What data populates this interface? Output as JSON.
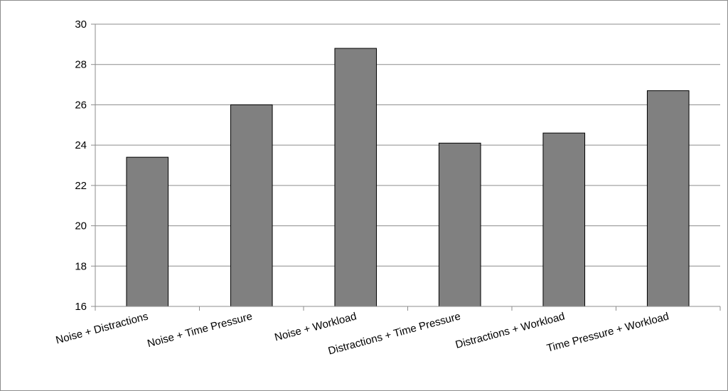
{
  "chart_data": {
    "type": "bar",
    "title": "",
    "xlabel": "",
    "ylabel": "",
    "categories": [
      "Noise + Distractions",
      "Noise + Time Pressure",
      "Noise + Workload",
      "Distractions + Time Pressure",
      "Distractions + Workload",
      "Time Pressure + Workload"
    ],
    "values": [
      23.4,
      26.0,
      28.8,
      24.1,
      24.6,
      26.7
    ],
    "ylim": [
      16,
      30
    ],
    "yticks": [
      "16",
      "18",
      "20",
      "22",
      "24",
      "26",
      "28",
      "30"
    ],
    "grid": "horizontal",
    "legend": "none",
    "colors": {
      "bar_fill": "#808080",
      "bar_stroke": "#000000",
      "grid": "#8c8c8c",
      "axis": "#8c8c8c"
    }
  }
}
